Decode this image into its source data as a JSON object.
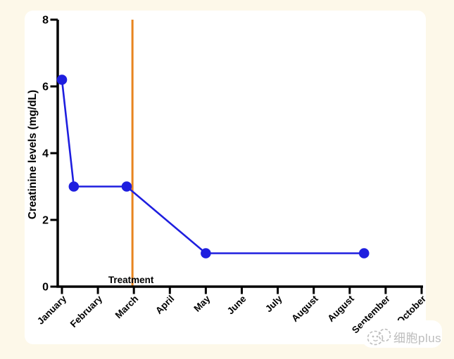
{
  "page": {
    "background_color": "#FDF8E9",
    "card_color": "#FFFFFF"
  },
  "watermark": {
    "icon": "cell-doodle-icon",
    "text": "细胞plus",
    "color": "#BDBDBD"
  },
  "chart_data": {
    "type": "line",
    "title": "",
    "ylabel": "Creatinine levels (mg/dL)",
    "xlabel": "",
    "ylim": [
      0,
      8
    ],
    "yticks": [
      0,
      2,
      4,
      6,
      8
    ],
    "x_categories": [
      "January",
      "February",
      "March",
      "April",
      "May",
      "June",
      "July",
      "August",
      "August",
      "September",
      "October"
    ],
    "series": [
      {
        "name": "Creatinine levels",
        "color": "#1E1EDF",
        "marker": "circle",
        "points": [
          {
            "x": 0.0,
            "y": 6.2
          },
          {
            "x": 0.33,
            "y": 3.0
          },
          {
            "x": 1.8,
            "y": 3.0
          },
          {
            "x": 4.0,
            "y": 1.0
          },
          {
            "x": 8.4,
            "y": 1.0
          }
        ]
      }
    ],
    "annotations": [
      {
        "type": "vline",
        "x": 1.96,
        "color": "#E8851F",
        "label": "Treatment"
      }
    ],
    "axis_color": "#000000",
    "grid": false,
    "legend": false
  }
}
